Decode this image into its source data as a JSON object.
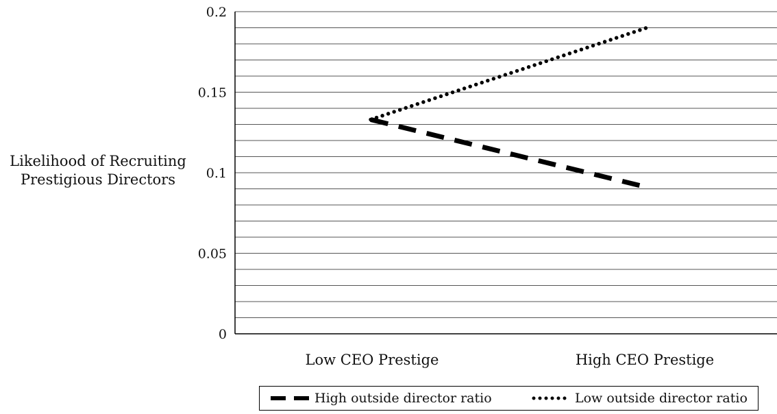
{
  "chart_data": {
    "type": "line",
    "categories": [
      "Low CEO Prestige",
      "High CEO Prestige"
    ],
    "ylabel_lines": [
      "Likelihood of Recruiting",
      "Prestigious Directors"
    ],
    "xlabel": "",
    "ylim": [
      0,
      0.2
    ],
    "y_major_ticks": [
      0,
      0.05,
      0.1,
      0.15,
      0.2
    ],
    "y_tick_labels": [
      "0",
      "0.05",
      "0.1",
      "0.15",
      "0.2"
    ],
    "y_minor_step": 0.01,
    "grid": true,
    "legend_position": "bottom",
    "series": [
      {
        "name": "High outside director ratio",
        "style": "dashed",
        "color": "#000000",
        "values": [
          0.133,
          0.091
        ]
      },
      {
        "name": "Low outside director ratio",
        "style": "dotted",
        "color": "#000000",
        "values": [
          0.133,
          0.19
        ]
      }
    ]
  }
}
